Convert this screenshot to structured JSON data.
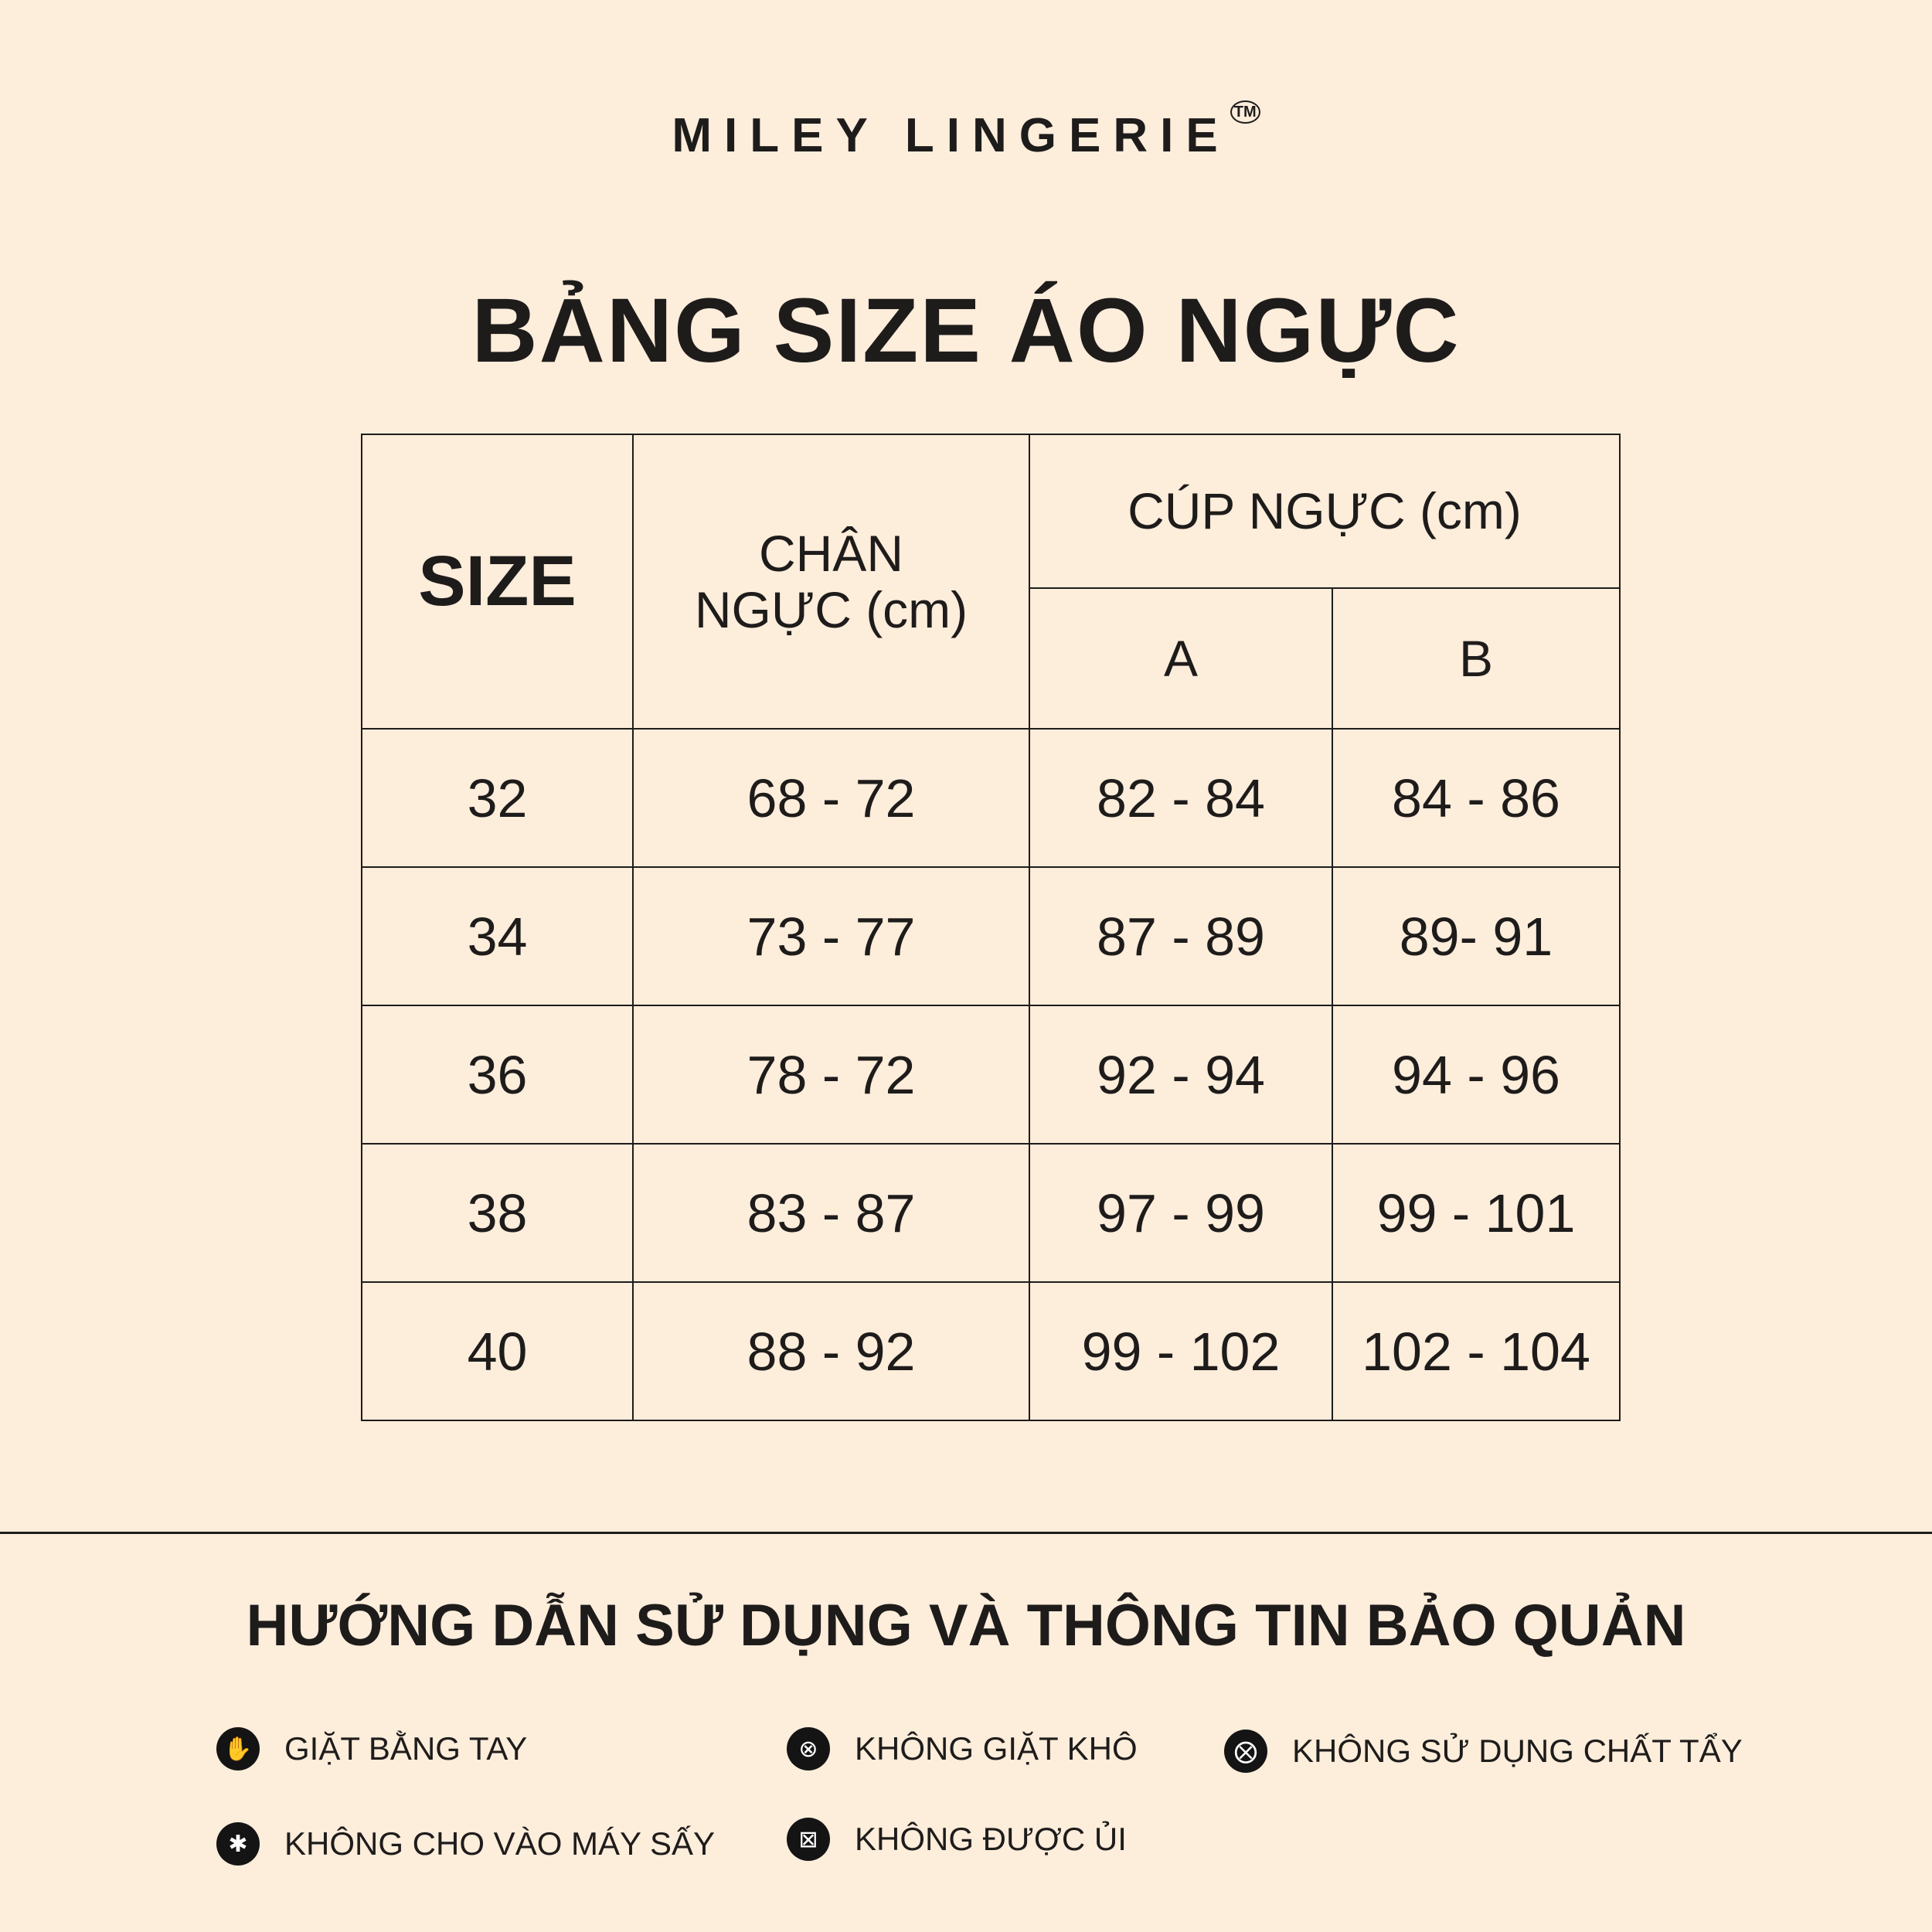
{
  "brand": {
    "name": "MILEY LINGERIE",
    "trademark": "TM"
  },
  "title": "BẢNG SIZE ÁO NGỰC",
  "table": {
    "headers": {
      "size": "SIZE",
      "underbust": "CHÂN NGỰC (cm)",
      "cup": "CÚP NGỰC (cm)",
      "cup_a": "A",
      "cup_b": "B"
    },
    "rows": [
      [
        "32",
        "68 - 72",
        "82 - 84",
        "84 - 86"
      ],
      [
        "34",
        "73 - 77",
        "87 - 89",
        "89- 91"
      ],
      [
        "36",
        "78 - 72",
        "92 - 94",
        "94 - 96"
      ],
      [
        "38",
        "83 - 87",
        "97 - 99",
        "99 - 101"
      ],
      [
        "40",
        "88 - 92",
        "99 - 102",
        "102 - 104"
      ]
    ]
  },
  "care": {
    "title": "HƯỚNG DẪN SỬ DỤNG VÀ THÔNG TIN BẢO QUẢN",
    "items": [
      {
        "label": "GIẶT BẰNG TAY",
        "icon": "hand-wash-icon"
      },
      {
        "label": "KHÔNG GIẶT KHÔ",
        "icon": "no-dry-clean-icon"
      },
      {
        "label": "KHÔNG SỬ DỤNG CHẤT TẨY",
        "icon": "no-bleach-icon"
      },
      {
        "label": "KHÔNG CHO VÀO MÁY SẤY",
        "icon": "no-tumble-dry-icon"
      },
      {
        "label": "KHÔNG ĐƯỢC ỦI",
        "icon": "no-iron-icon"
      }
    ]
  },
  "colors": {
    "background": "#fdeddb",
    "text": "#1e1c1b"
  }
}
